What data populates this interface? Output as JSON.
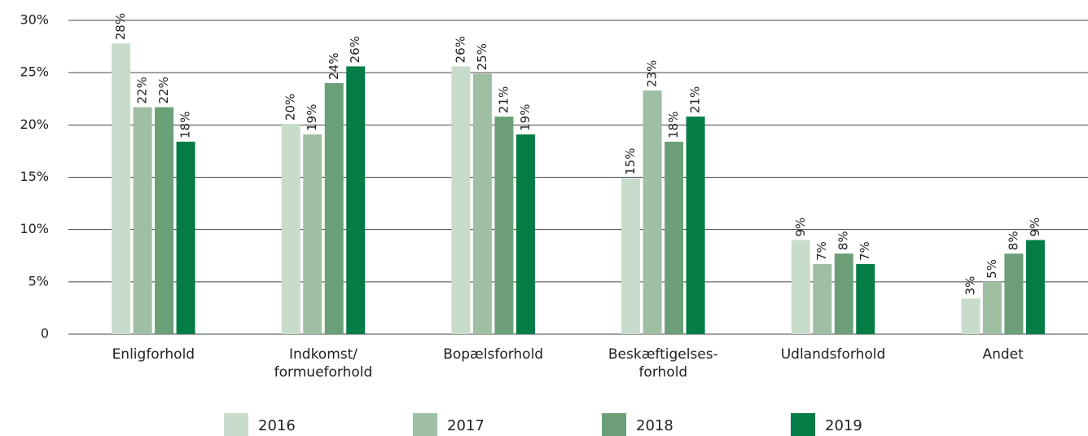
{
  "chart_data": {
    "type": "bar",
    "categories": [
      "Enligforhold",
      "Indkomst/\nformueforhold",
      "Bopælsforhold",
      "Beskæftigelses-\nforhold",
      "Udlandsforhold",
      "Andet"
    ],
    "series": [
      {
        "name": "2016",
        "color": "#c8dccb",
        "values": [
          27.8,
          20.1,
          25.6,
          14.9,
          9.0,
          3.4
        ],
        "value_labels": [
          "28%",
          "20%",
          "26%",
          "15%",
          "9%",
          "3%"
        ]
      },
      {
        "name": "2017",
        "color": "#9fbfa3",
        "values": [
          21.7,
          19.1,
          24.9,
          23.3,
          6.7,
          5.0
        ],
        "value_labels": [
          "22%",
          "19%",
          "25%",
          "23%",
          "7%",
          "5%"
        ]
      },
      {
        "name": "2018",
        "color": "#6b9f78",
        "values": [
          21.7,
          24.0,
          20.8,
          18.4,
          7.7,
          7.7
        ],
        "value_labels": [
          "22%",
          "24%",
          "21%",
          "18%",
          "8%",
          "8%"
        ]
      },
      {
        "name": "2019",
        "color": "#047c46",
        "values": [
          18.4,
          25.6,
          19.1,
          20.8,
          6.7,
          9.0
        ],
        "value_labels": [
          "18%",
          "26%",
          "19%",
          "21%",
          "7%",
          "9%"
        ]
      }
    ],
    "ylim": [
      0,
      30
    ],
    "yticks": [
      0,
      {
        "value": 5,
        "label": "5%"
      },
      {
        "value": 10,
        "label": "10%"
      },
      {
        "value": 15,
        "label": "15%"
      },
      {
        "value": 20,
        "label": "20%"
      },
      {
        "value": 25,
        "label": "25%"
      },
      {
        "value": 30,
        "label": "30%"
      }
    ],
    "grid": true
  }
}
